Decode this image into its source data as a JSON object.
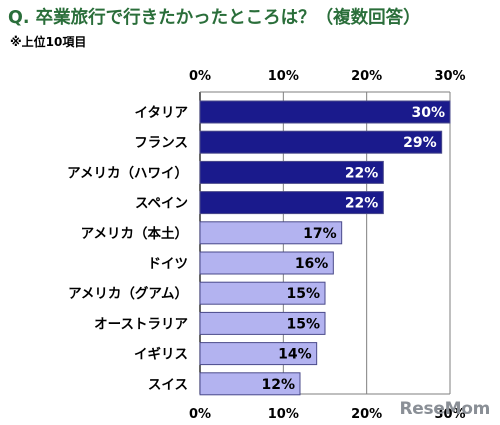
{
  "title": "Q. 卒業旅行で行きたかったところは？（複数回答）",
  "subtitle": "※上位10項目",
  "watermark": "ReseMom",
  "colors": {
    "bar_dark": "#1a1a8c",
    "bar_light": "#b3b3f0",
    "bar_stroke": "#4a4a8a",
    "title": "#2a6e3a",
    "grid": "#7f7f7f"
  },
  "chart_data": {
    "type": "bar",
    "orientation": "horizontal",
    "categories": [
      "イタリア",
      "フランス",
      "アメリカ（ハワイ）",
      "スペイン",
      "アメリカ（本土）",
      "ドイツ",
      "アメリカ（グアム）",
      "オーストラリア",
      "イギリス",
      "スイス"
    ],
    "values": [
      30,
      29,
      22,
      22,
      17,
      16,
      15,
      15,
      14,
      12
    ],
    "value_labels": [
      "30%",
      "29%",
      "22%",
      "22%",
      "17%",
      "16%",
      "15%",
      "15%",
      "14%",
      "12%"
    ],
    "highlight_top": 4,
    "xlim": [
      0,
      30
    ],
    "xticks": [
      0,
      10,
      20,
      30
    ],
    "xtick_labels": [
      "0%",
      "10%",
      "20%",
      "30%"
    ],
    "title": "",
    "xlabel": "",
    "ylabel": "",
    "grid": true,
    "legend": "none"
  }
}
